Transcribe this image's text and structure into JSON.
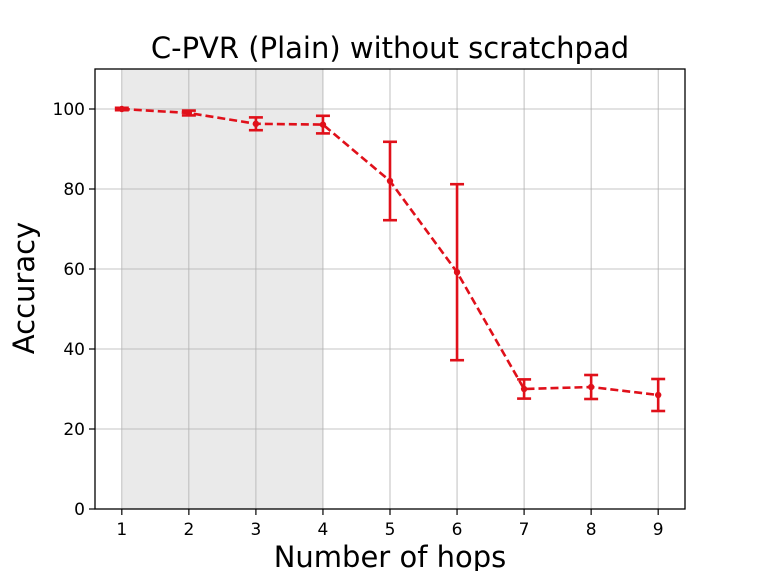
{
  "chart_data": {
    "type": "line",
    "title": "C-PVR (Plain) without scratchpad",
    "xlabel": "Number of hops",
    "ylabel": "Accuracy",
    "xlim": [
      0.6,
      9.4
    ],
    "ylim": [
      0,
      110
    ],
    "xticks": [
      1,
      2,
      3,
      4,
      5,
      6,
      7,
      8,
      9
    ],
    "yticks": [
      0,
      20,
      40,
      60,
      80,
      100
    ],
    "grid": true,
    "shaded_region": {
      "x_start": 1,
      "x_end": 4,
      "color": "#d9d9d9"
    },
    "series": [
      {
        "color": "#e0101a",
        "line_style": "dashed",
        "x": [
          1,
          2,
          3,
          4,
          5,
          6,
          7,
          8,
          9
        ],
        "values": [
          100.0,
          99.0,
          96.3,
          96.1,
          82.0,
          59.2,
          30.0,
          30.5,
          28.5
        ],
        "error": [
          0.3,
          0.6,
          1.6,
          2.2,
          9.8,
          22.0,
          2.4,
          3.0,
          4.0
        ]
      }
    ]
  }
}
